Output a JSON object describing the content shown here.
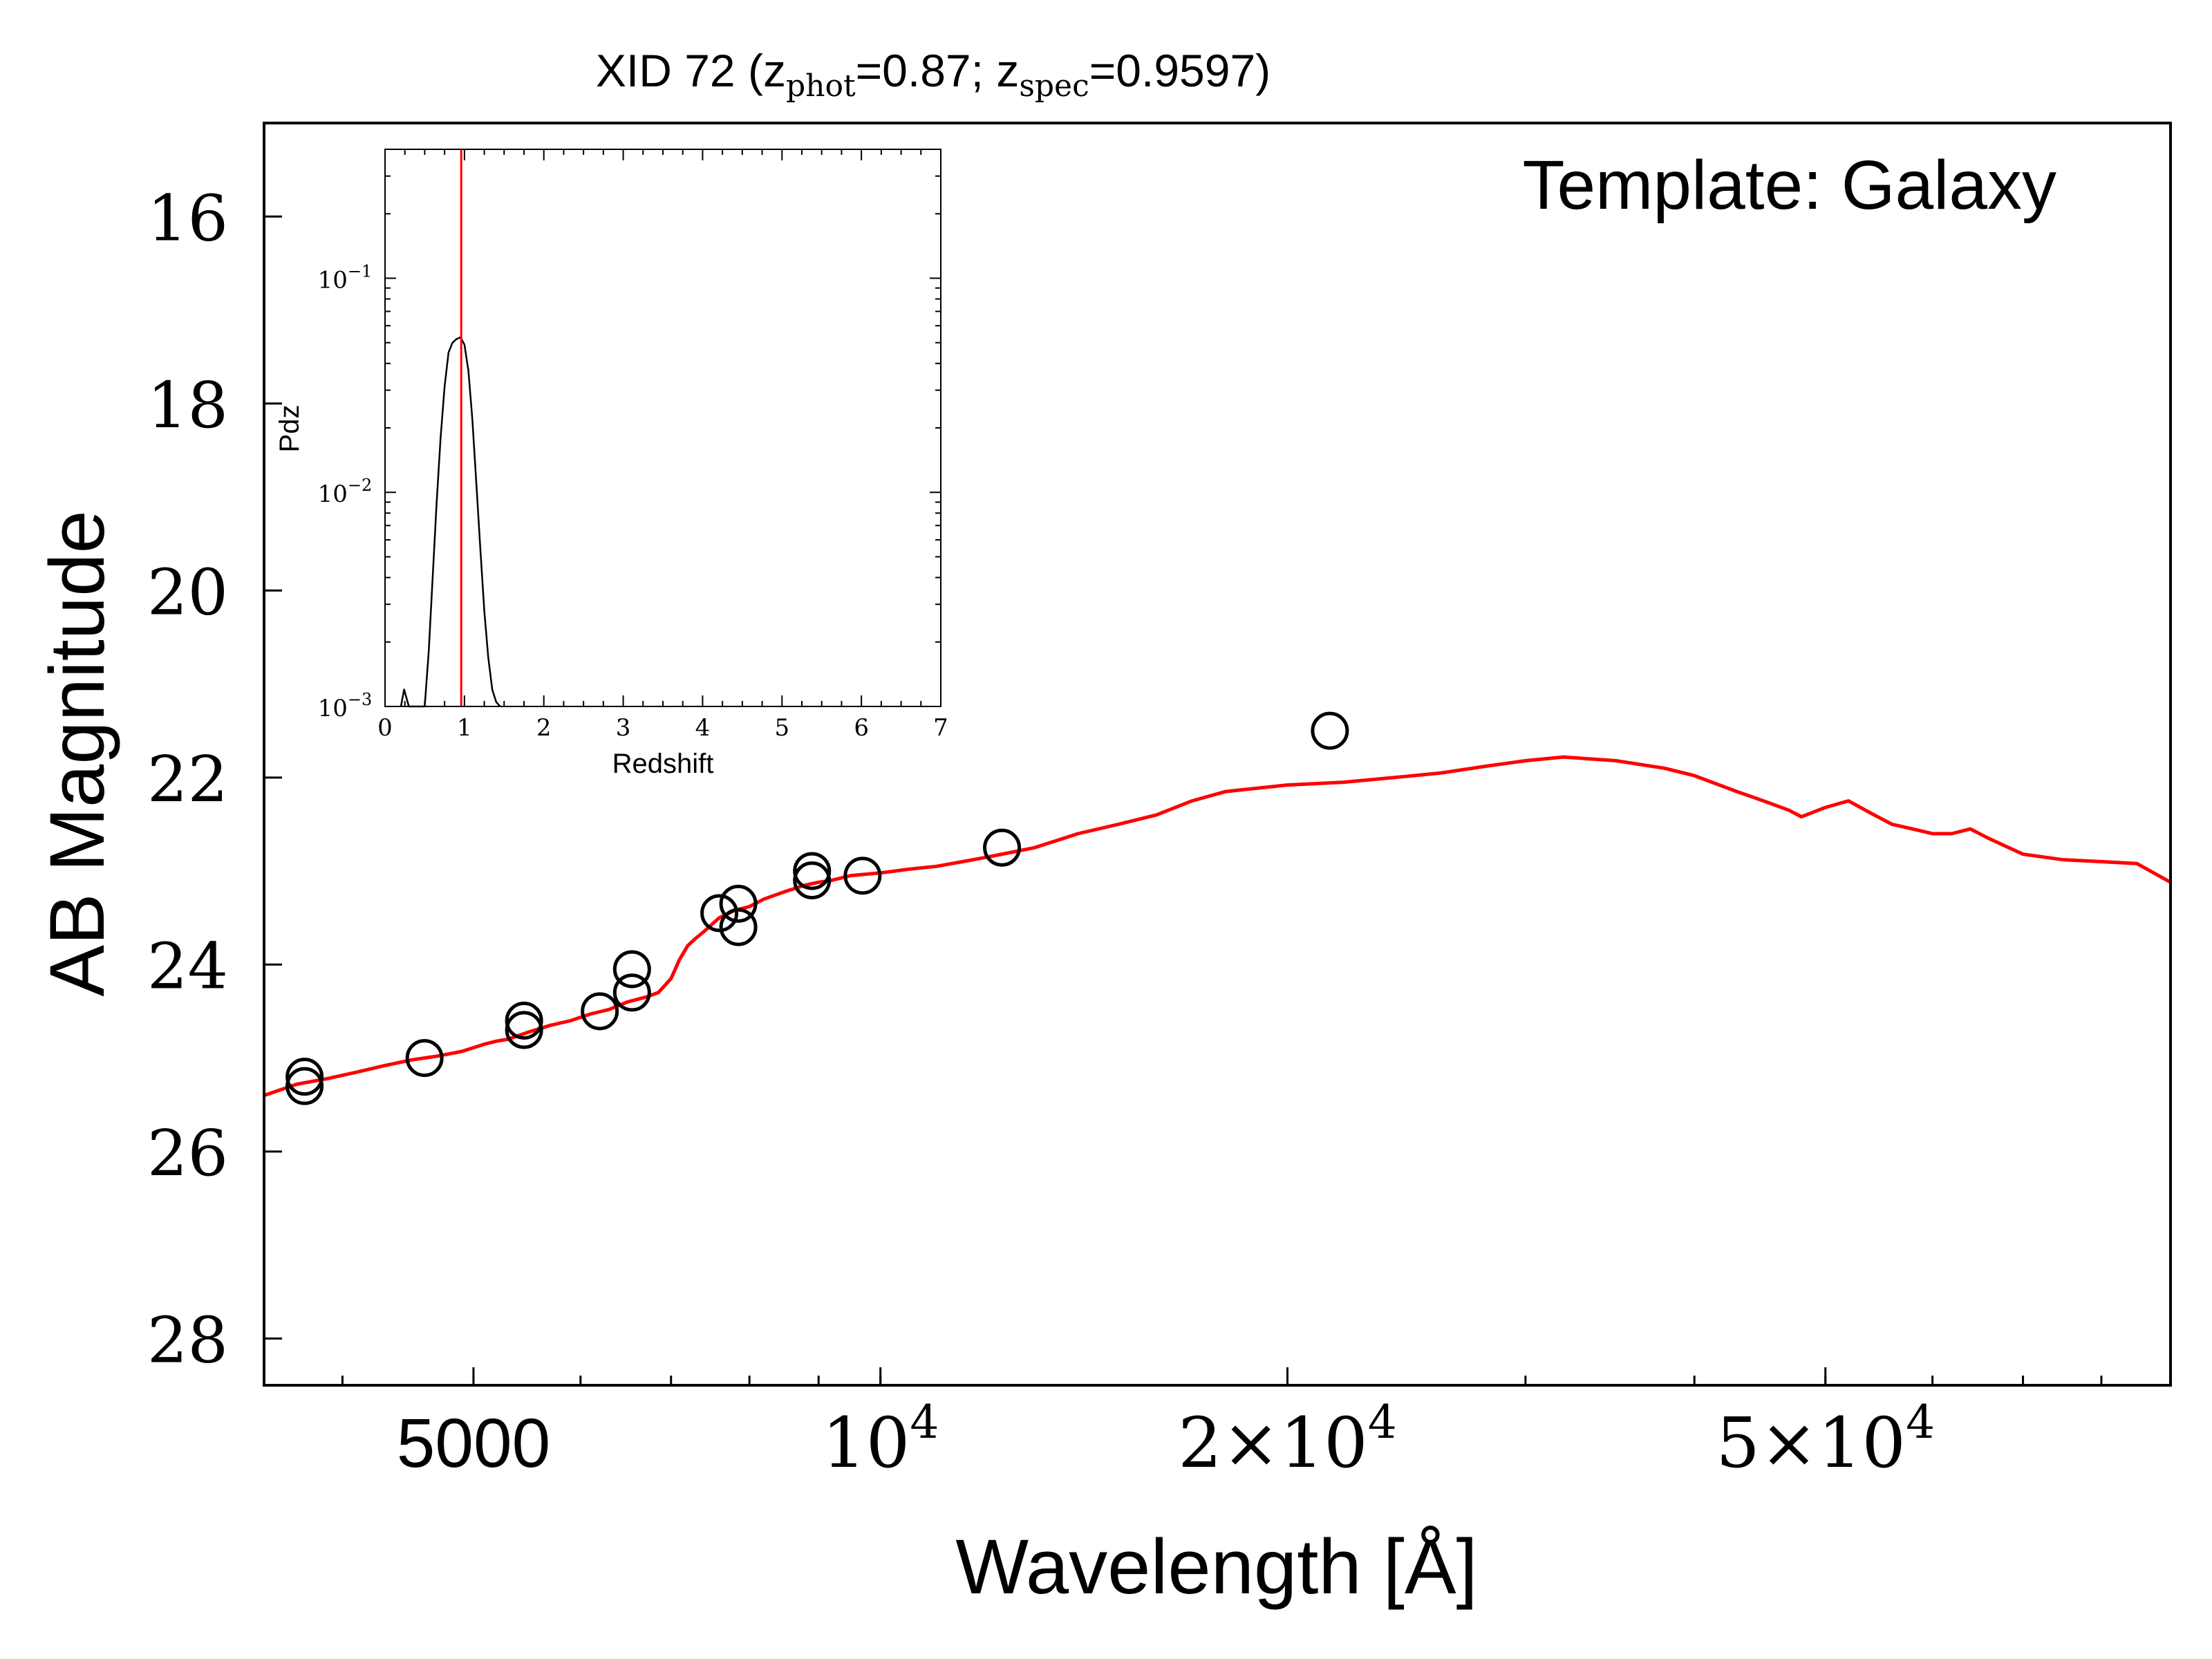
{
  "chart_data": [
    {
      "type": "scatter",
      "title_main": "XID 72 (z",
      "title_sub1": "phot",
      "title_mid": "=0.87; z",
      "title_sub2": "spec",
      "title_end": "=0.9597)",
      "xlabel": "Wavelength [Å]",
      "ylabel": "AB Magnitude",
      "annotation": "Template: Galaxy",
      "x_scale": "log",
      "xlim": [
        3500,
        90000
      ],
      "ylim": [
        28.5,
        15
      ],
      "y_inverted": true,
      "grid": false,
      "x_ticks": [
        {
          "value": 5000,
          "label": "5000",
          "sup": ""
        },
        {
          "value": 10000,
          "label": "10",
          "sup": "4"
        },
        {
          "value": 20000,
          "label": "2×10",
          "sup": "4"
        },
        {
          "value": 50000,
          "label": "5×10",
          "sup": "4"
        }
      ],
      "y_ticks": [
        {
          "value": 16,
          "label": "16"
        },
        {
          "value": 18,
          "label": "18"
        },
        {
          "value": 20,
          "label": "20"
        },
        {
          "value": 22,
          "label": "22"
        },
        {
          "value": 24,
          "label": "24"
        },
        {
          "value": 26,
          "label": "26"
        },
        {
          "value": 28,
          "label": "28"
        }
      ],
      "colors": {
        "template": "#ff0000",
        "points": "#000000"
      },
      "series": [
        {
          "kind": "line",
          "x": [
            3500,
            3700,
            3900,
            4100,
            4300,
            4500,
            4700,
            4900,
            5100,
            5200,
            5300,
            5500,
            5700,
            5900,
            6100,
            6300,
            6500,
            6700,
            6850,
            7000,
            7100,
            7200,
            7300,
            7400,
            7600,
            7800,
            8000,
            8200,
            8500,
            8800,
            9000,
            9200,
            9500,
            10000,
            10500,
            11000,
            11500,
            12000,
            12500,
            13000,
            14000,
            15000,
            16000,
            17000,
            18000,
            20000,
            22000,
            24000,
            26000,
            28000,
            30000,
            32000,
            35000,
            38000,
            40000,
            43000,
            45000,
            47000,
            48000,
            50000,
            52000,
            54000,
            56000,
            58000,
            60000,
            62000,
            64000,
            66000,
            70000,
            75000,
            80000,
            85000,
            90000
          ],
          "y": [
            25.4,
            25.28,
            25.22,
            25.15,
            25.08,
            25.02,
            24.98,
            24.93,
            24.85,
            24.82,
            24.8,
            24.72,
            24.65,
            24.6,
            24.53,
            24.48,
            24.4,
            24.35,
            24.3,
            24.15,
            23.95,
            23.8,
            23.72,
            23.65,
            23.5,
            23.42,
            23.38,
            23.3,
            23.22,
            23.15,
            23.12,
            23.1,
            23.05,
            23.02,
            22.98,
            22.95,
            22.9,
            22.85,
            22.8,
            22.75,
            22.6,
            22.5,
            22.4,
            22.25,
            22.15,
            22.08,
            22.05,
            22.0,
            21.95,
            21.88,
            21.82,
            21.78,
            21.82,
            21.9,
            21.98,
            22.15,
            22.25,
            22.35,
            22.42,
            22.32,
            22.25,
            22.38,
            22.5,
            22.55,
            22.6,
            22.6,
            22.55,
            22.65,
            22.82,
            22.88,
            22.9,
            22.92,
            23.12
          ]
        },
        {
          "kind": "scatter",
          "x": [
            3750,
            3750,
            4600,
            5450,
            5450,
            6200,
            6550,
            6550,
            7600,
            7850,
            7850,
            8900,
            8900,
            9700,
            12300,
            21500
          ],
          "y": [
            25.2,
            25.3,
            25.0,
            24.6,
            24.7,
            24.5,
            24.05,
            24.3,
            23.45,
            23.35,
            23.6,
            23.0,
            23.1,
            23.05,
            22.75,
            21.5
          ]
        }
      ]
    },
    {
      "type": "line",
      "role": "inset",
      "xlabel": "Redshift",
      "ylabel": "Pdz",
      "y_scale": "log",
      "xlim": [
        0,
        7
      ],
      "ylim": [
        0.001,
        0.4
      ],
      "grid": false,
      "x_ticks": [
        "0",
        "1",
        "2",
        "3",
        "4",
        "5",
        "6",
        "7"
      ],
      "y_ticks": [
        {
          "value": 0.1,
          "base": "10",
          "exp": "−1"
        },
        {
          "value": 0.01,
          "base": "10",
          "exp": "−2"
        },
        {
          "value": 0.001,
          "base": "10",
          "exp": "−3"
        }
      ],
      "marker_line_x": 0.9597,
      "colors": {
        "pdz": "#000000",
        "marker": "#ff0000"
      },
      "series": [
        {
          "x": [
            0.2,
            0.24,
            0.3,
            0.5,
            0.55,
            0.6,
            0.65,
            0.7,
            0.75,
            0.8,
            0.85,
            0.9,
            0.95,
            1.0,
            1.05,
            1.1,
            1.15,
            1.2,
            1.25,
            1.3,
            1.35,
            1.4,
            1.45
          ],
          "y": [
            0.001,
            0.0012,
            0.001,
            0.001,
            0.0018,
            0.004,
            0.009,
            0.018,
            0.031,
            0.045,
            0.05,
            0.052,
            0.053,
            0.049,
            0.037,
            0.022,
            0.011,
            0.0055,
            0.0028,
            0.0017,
            0.0012,
            0.00105,
            0.001
          ]
        }
      ]
    }
  ]
}
